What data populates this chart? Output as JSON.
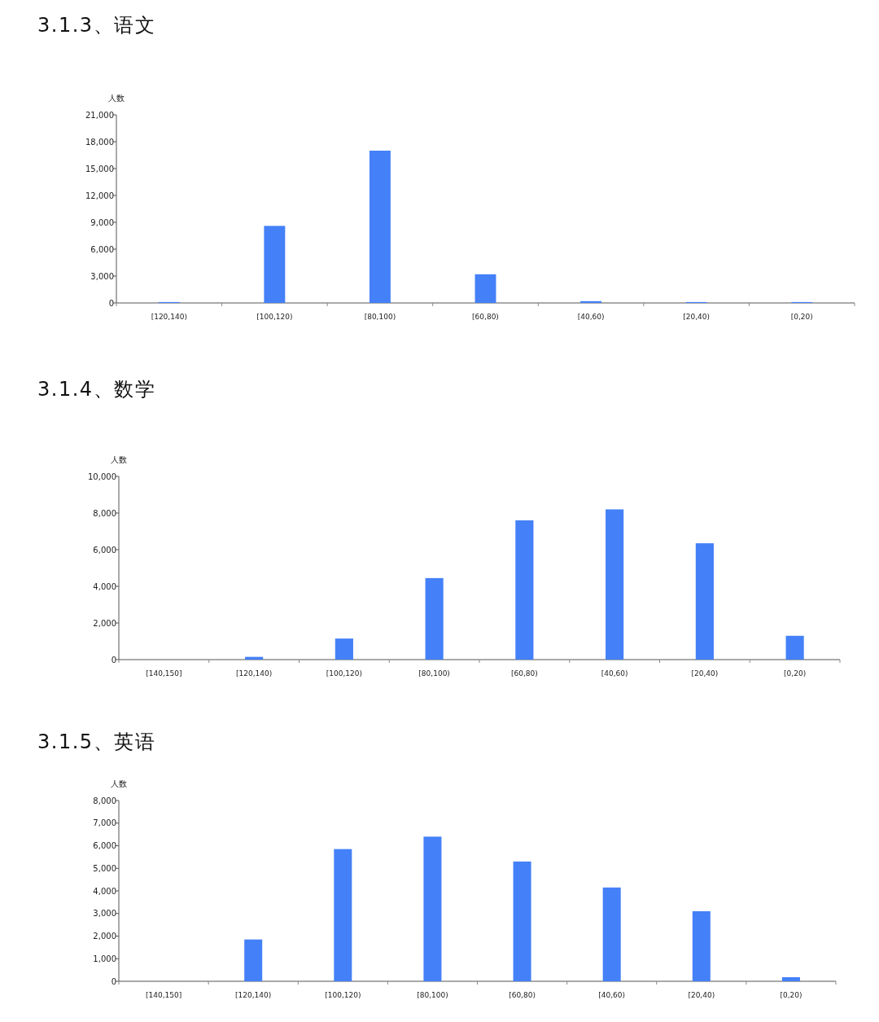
{
  "chart_data": [
    {
      "type": "bar",
      "title": "3.1.3、语文",
      "ylabel": "人数",
      "categories": [
        "[120,140)",
        "[100,120)",
        "[80,100)",
        "[60,80)",
        "[40,60)",
        "[20,40)",
        "[0,20)"
      ],
      "values": [
        100,
        8600,
        17000,
        3200,
        200,
        100,
        100
      ],
      "color": "#4480f8",
      "ylim": [
        0,
        21000
      ],
      "yticks": [
        {
          "value": 0,
          "label": "0"
        },
        {
          "value": 3000,
          "label": "3,000"
        },
        {
          "value": 6000,
          "label": "6,000"
        },
        {
          "value": 9000,
          "label": "9,000"
        },
        {
          "value": 12000,
          "label": "12,000"
        },
        {
          "value": 15000,
          "label": "15,000"
        },
        {
          "value": 18000,
          "label": "18,000"
        },
        {
          "value": 21000,
          "label": "21,000"
        }
      ],
      "grid": false
    },
    {
      "type": "bar",
      "title": "3.1.4、数学",
      "ylabel": "人数",
      "categories": [
        "[140,150]",
        "[120,140)",
        "[100,120)",
        "[80,100)",
        "[60,80)",
        "[40,60)",
        "[20,40)",
        "[0,20)"
      ],
      "values": [
        0,
        150,
        1150,
        4450,
        7600,
        8200,
        6350,
        1300
      ],
      "color": "#4480f8",
      "ylim": [
        0,
        10000
      ],
      "yticks": [
        {
          "value": 0,
          "label": "0"
        },
        {
          "value": 2000,
          "label": "2,000"
        },
        {
          "value": 4000,
          "label": "4,000"
        },
        {
          "value": 6000,
          "label": "6,000"
        },
        {
          "value": 8000,
          "label": "8,000"
        },
        {
          "value": 10000,
          "label": "10,000"
        }
      ],
      "grid": false
    },
    {
      "type": "bar",
      "title": "3.1.5、英语",
      "ylabel": "人数",
      "categories": [
        "[140,150]",
        "[120,140)",
        "[100,120)",
        "[80,100)",
        "[60,80)",
        "[40,60)",
        "[20,40)",
        "[0,20)"
      ],
      "values": [
        0,
        1850,
        5850,
        6400,
        5300,
        4150,
        3100,
        180
      ],
      "color": "#4480f8",
      "ylim": [
        0,
        8000
      ],
      "yticks": [
        {
          "value": 0,
          "label": "0"
        },
        {
          "value": 1000,
          "label": "1,000"
        },
        {
          "value": 2000,
          "label": "2,000"
        },
        {
          "value": 3000,
          "label": "3,000"
        },
        {
          "value": 4000,
          "label": "4,000"
        },
        {
          "value": 5000,
          "label": "5,000"
        },
        {
          "value": 6000,
          "label": "6,000"
        },
        {
          "value": 7000,
          "label": "7,000"
        },
        {
          "value": 8000,
          "label": "8,000"
        }
      ],
      "grid": false
    }
  ]
}
